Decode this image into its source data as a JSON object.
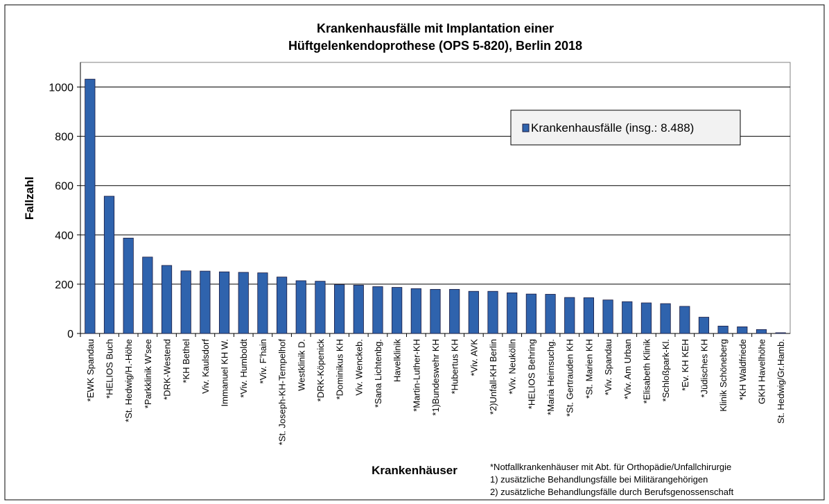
{
  "chart_data": {
    "type": "bar",
    "title": [
      "Krankenhausfälle mit Implantation einer",
      "Hüftgelenkendoprothese (OPS 5-820), Berlin 2018"
    ],
    "x_label": "Krankenhäuser",
    "y_label": "Fallzahl",
    "categories": [
      "*EWK Spandau",
      "*HELIOS Buch",
      "*St. Hedwig/H.-Höhe",
      "*Parkklinik W’see",
      "*DRK-Westend",
      "*KH Bethel",
      "Viv. Kaulsdorf",
      "Immanuel KH W.",
      "*Viv. Humboldt",
      "*Viv. F’hain",
      "*St. Joseph-KH-Tempelhof",
      "Westklinik D.",
      "*DRK-Köpenick",
      "*Dominikus KH",
      "Viv. Wenckeb.",
      "*Sana Lichtenbg.",
      "Havelklinik",
      "*Martin-Luther-KH",
      "*1)Bundeswehr KH",
      "*Hubertus KH",
      "*Viv. AVK",
      "*2)Unfall-KH Berlin",
      "*Viv. Neukölln",
      "*HELIOS Behring",
      "*Maria Heimsuchg.",
      "*St. Gertrauden KH",
      "*St. Marien KH",
      "*Viv. Spandau",
      "*Viv. Am Urban",
      "*Elisabeth Klinik",
      "*Schloßpark-Kl.",
      "*Ev. KH KEH",
      "*Jüdisches KH",
      "Klinik Schöneberg",
      "*KH Waldfriede",
      "GKH Havelhöhe",
      "St. Hedwig/Gr.Hamb."
    ],
    "series": [
      {
        "name": "Krankenhausfälle (insg.: 8.488)",
        "color": "#2f63ad",
        "values": [
          1032,
          557,
          387,
          310,
          276,
          254,
          253,
          250,
          248,
          246,
          229,
          214,
          212,
          198,
          196,
          190,
          187,
          182,
          179,
          179,
          171,
          171,
          165,
          160,
          159,
          146,
          145,
          136,
          129,
          124,
          121,
          110,
          66,
          30,
          27,
          16,
          3
        ]
      }
    ],
    "ylim": [
      0,
      1100
    ],
    "yticks": [
      0,
      200,
      400,
      600,
      800,
      1000
    ],
    "grid": true,
    "legend": "upper right",
    "notes": [
      "*Notfallkrankenhäuser mit Abt. für Orthopädie/Unfallchirurgie",
      "1) zusätzliche Behandlungsfälle bei Militärangehörigen",
      "2) zusätzliche Behandlungsfälle  durch Berufsgenossenschaft"
    ]
  }
}
